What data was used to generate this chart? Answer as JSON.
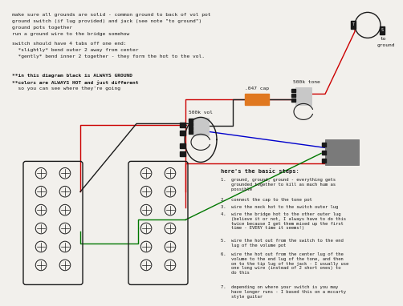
{
  "bg_color": "#f2f0ec",
  "title_notes": [
    "make sure all grounds are solid - common ground to back of vol pot",
    "ground switch (if lug provided) and jack (see note \"to ground\")",
    "ground pots together",
    "run a ground wire to the bridge somehow"
  ],
  "switch_notes": [
    "switch should have 4 tabs off one end:",
    "  *slightly* bend outer 2 away from center",
    "  *gently* bend inner 2 together - they form the hot to the vol."
  ],
  "legend_notes": [
    "**in this diagram black is ALWAYS GROUND",
    "**colors are ALWAYS HOT and just different",
    "  so you can see where they're going"
  ],
  "steps_title": "here's the basic steps:",
  "steps": [
    "1.  ground, ground, ground - everything gets\n    grounded together to kill as much hum as\n    possible",
    "2.  connect the cap to the tone pot",
    "3.  wire the neck hot to the switch outer lug",
    "4.  wire the bridge hot to the other outer lug\n    (believe it or not, I always have to do this\n    twice because I get them mixed up the first\n    time - EVERY time it seems!)",
    "5.  wire the hot out from the switch to the end\n    lug of the volume pot",
    "6.  wire the hot out from the center lug of the\n    volume to the end lug of the tone, and then\n    on to the tip lug of the jack - I usually use\n    one long wire (instead of 2 short ones) to\n    do this",
    "7.  depending on where your switch is you may\n    have longer runs - I based this on a mccarty\n    style guitar"
  ],
  "cap_label": ".047 cap",
  "tone_label": "500k tone",
  "vol_label": "500k vol",
  "colors": {
    "bg": "#f2f0ec",
    "black": "#1a1a1a",
    "red": "#cc0000",
    "green": "#007700",
    "blue": "#0000cc",
    "orange_cap": "#e07820",
    "gray_jack": "#7a7a7a",
    "lt_gray": "#c8c8c8"
  }
}
